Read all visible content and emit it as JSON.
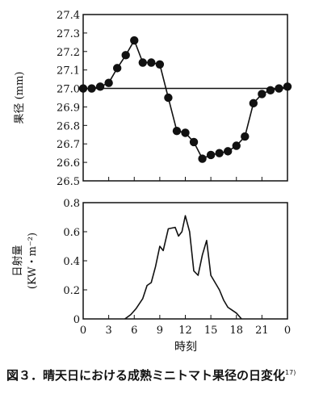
{
  "chart_data": [
    {
      "type": "line",
      "ylabel": "果径 (mm)",
      "ylim": [
        26.5,
        27.4
      ],
      "yticks": [
        "27.4",
        "27.3",
        "27.2",
        "27.1",
        "27.0",
        "26.9",
        "26.8",
        "26.7",
        "26.6",
        "26.5"
      ],
      "xlim": [
        0,
        24
      ],
      "reference_line": 27.0,
      "series": [
        {
          "x": [
            0,
            1,
            2,
            3,
            4,
            5,
            6,
            7,
            8,
            9,
            10,
            11,
            12,
            13,
            14,
            15,
            16,
            17,
            18,
            19,
            20,
            21,
            22,
            23,
            24
          ],
          "y": [
            27.0,
            27.0,
            27.01,
            27.03,
            27.11,
            27.18,
            27.26,
            27.14,
            27.14,
            27.13,
            26.95,
            26.77,
            26.76,
            26.71,
            26.62,
            26.64,
            26.65,
            26.66,
            26.69,
            26.74,
            26.92,
            26.97,
            26.99,
            27.0,
            27.01
          ]
        }
      ]
    },
    {
      "type": "line",
      "ylabel_line1": "日射量",
      "ylabel_line2": "(KW・m⁻²)",
      "ylim": [
        0,
        0.8
      ],
      "yticks": [
        "0.8",
        "0.6",
        "0.4",
        "0.2",
        "0"
      ],
      "xlim": [
        0,
        24
      ],
      "xticks": [
        "0",
        "3",
        "6",
        "9",
        "12",
        "15",
        "18",
        "21",
        "0"
      ],
      "xlabel": "時刻",
      "series": [
        {
          "x": [
            4.9,
            5.6,
            6.2,
            7.0,
            7.5,
            8.0,
            8.5,
            9.0,
            9.4,
            10.0,
            10.8,
            11.2,
            11.6,
            12.0,
            12.5,
            13.0,
            13.5,
            14.0,
            14.5,
            15.0,
            16.0,
            16.5,
            17.0,
            17.5,
            18.0,
            18.6
          ],
          "y": [
            0.0,
            0.03,
            0.07,
            0.14,
            0.23,
            0.25,
            0.36,
            0.5,
            0.47,
            0.62,
            0.63,
            0.57,
            0.6,
            0.71,
            0.6,
            0.33,
            0.3,
            0.44,
            0.54,
            0.3,
            0.2,
            0.13,
            0.08,
            0.06,
            0.04,
            0.0
          ]
        }
      ]
    }
  ],
  "caption": {
    "text": "図３．晴天日における成熟ミニトマト果径の日変化",
    "ref": "17)"
  }
}
